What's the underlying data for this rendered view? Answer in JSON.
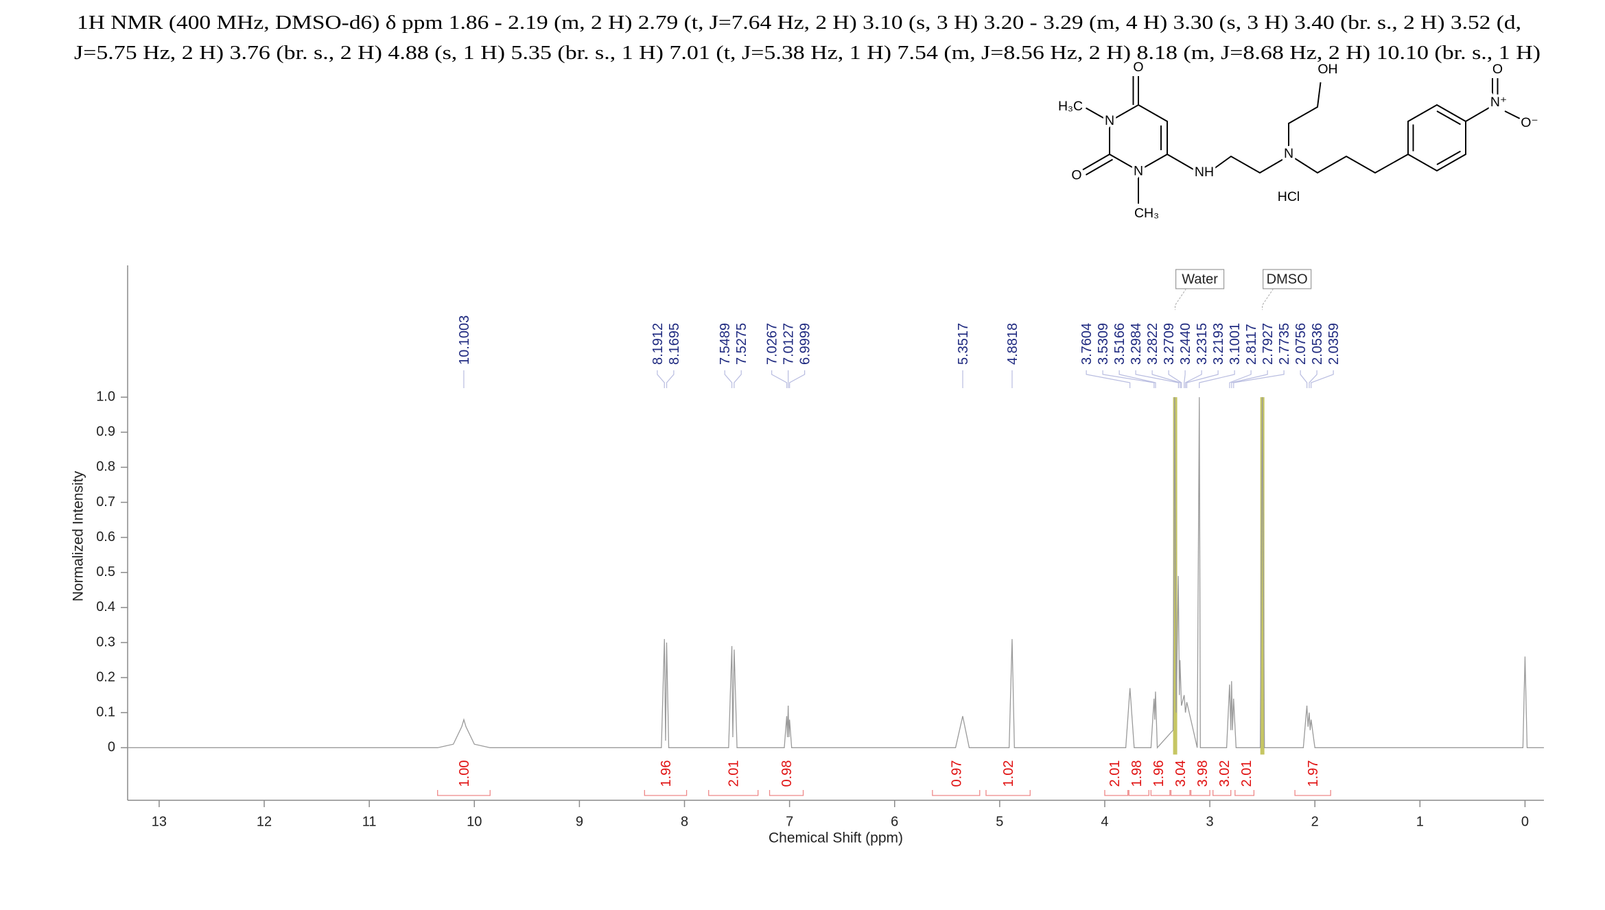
{
  "chart_data": {
    "type": "line",
    "title": [
      "1H NMR (400 MHz, DMSO-d6) δ ppm 1.86 - 2.19 (m, 2 H) 2.79 (t, J=7.64 Hz, 2 H) 3.10 (s, 3 H) 3.20 - 3.29 (m, 4 H) 3.30 (s, 3 H) 3.40 (br. s., 2 H) 3.52 (d,",
      "J=5.75 Hz, 2 H) 3.76 (br. s., 2 H) 4.88 (s, 1 H) 5.35 (br. s., 1 H) 7.01 (t,  J=5.38 Hz, 1 H) 7.54 (m, J=8.56 Hz, 2 H) 8.18 (m, J=8.68 Hz, 2 H) 10.10 (br. s., 1 H)"
    ],
    "x_label": "Chemical Shift (ppm)",
    "y_label": "Normalized Intensity",
    "xlim": [
      13.3,
      -0.18
    ],
    "ylim": [
      -0.15,
      1.376
    ],
    "xticks": [
      13,
      12,
      11,
      10,
      9,
      8,
      7,
      6,
      5,
      4,
      3,
      2,
      1,
      0
    ],
    "yticks": [
      0,
      0.1,
      0.2,
      0.3,
      0.4,
      0.5,
      0.6,
      0.7,
      0.8,
      0.9,
      {
        "value": 1,
        "label": "1.0"
      }
    ],
    "series": [
      {
        "color": "#9a9a9a",
        "x": [
          13.3,
          10.35,
          10.2,
          10.12,
          10.1,
          10.08,
          10.0,
          9.85,
          8.22,
          8.191,
          8.18,
          8.17,
          8.15,
          7.58,
          7.549,
          7.54,
          7.527,
          7.5,
          7.05,
          7.027,
          7.02,
          7.013,
          7.006,
          7.0,
          6.98,
          5.42,
          5.352,
          5.29,
          4.91,
          4.882,
          4.86,
          3.8,
          3.76,
          3.72,
          3.56,
          3.531,
          3.524,
          3.517,
          3.5,
          3.35,
          3.335,
          3.32,
          3.3,
          3.29,
          3.284,
          3.27,
          3.244,
          3.232,
          3.219,
          3.15,
          3.12,
          3.1,
          3.09,
          2.84,
          2.812,
          2.8,
          2.793,
          2.784,
          2.774,
          2.75,
          2.52,
          2.5,
          2.48,
          2.11,
          2.076,
          2.065,
          2.054,
          2.045,
          2.036,
          2.0,
          0.02,
          0.0,
          -0.02,
          -0.18
        ],
        "values": [
          0,
          0,
          0.01,
          0.06,
          0.08,
          0.06,
          0.01,
          0,
          0,
          0.31,
          0.02,
          0.3,
          0,
          0,
          0.29,
          0.03,
          0.28,
          0,
          0,
          0.09,
          0.03,
          0.12,
          0.03,
          0.08,
          0,
          0,
          0.09,
          0,
          0,
          0.31,
          0,
          0,
          0.17,
          0,
          0,
          0.14,
          0.08,
          0.16,
          0,
          0.05,
          1.0,
          0.1,
          0.49,
          0.15,
          0.25,
          0.12,
          0.15,
          0.1,
          0.13,
          0.04,
          0,
          1.0,
          0,
          0,
          0.18,
          0.05,
          0.19,
          0.05,
          0.14,
          0,
          0,
          1.0,
          0,
          0,
          0.12,
          0.06,
          0.1,
          0.05,
          0.08,
          0,
          0,
          0.26,
          0,
          0
        ]
      }
    ],
    "peak_labels": [
      10.1003,
      8.1912,
      8.1695,
      7.5489,
      7.5275,
      7.0267,
      7.0127,
      6.9999,
      5.3517,
      4.8818,
      3.7604,
      3.5309,
      3.5166,
      3.2984,
      3.2822,
      3.2709,
      {
        "value": 3.244,
        "label": "3.2440"
      },
      3.2315,
      3.2193,
      3.1001,
      2.8117,
      2.7927,
      2.7735,
      2.0756,
      2.0536,
      2.0359
    ],
    "peak_label_color": "#1f2a80",
    "integrals": {
      "color": "#e01010",
      "values": [
        1,
        1.96,
        2.01,
        0.98,
        0.97,
        1.02,
        2.01,
        1.98,
        1.96,
        3.04,
        3.98,
        3.02,
        2.01,
        1.97
      ],
      "value_labels": [
        "1.00",
        "1.96",
        "2.01",
        "0.98",
        "0.97",
        "1.02",
        "2.01",
        "1.98",
        "1.96",
        "3.04",
        "3.98",
        "3.02",
        "2.01",
        "1.97"
      ],
      "from": [
        10.35,
        8.38,
        7.77,
        7.19,
        5.64,
        5.13,
        4.0,
        3.77,
        3.56,
        3.37,
        3.18,
        2.97,
        2.76,
        2.19
      ],
      "to": [
        9.85,
        7.98,
        7.3,
        6.87,
        5.19,
        4.71,
        3.78,
        3.58,
        3.38,
        3.19,
        3.0,
        2.8,
        2.58,
        1.85
      ]
    },
    "annotations": [
      {
        "text": "Water",
        "x": 3.33
      },
      {
        "text": "DMSO",
        "x": 2.5
      }
    ],
    "solvent_color": "#b8b83c"
  },
  "structure": {
    "labels": [
      "O",
      "H₃C",
      "N",
      "O",
      "N",
      "CH₃",
      "NH",
      "OH",
      "N",
      "HCl",
      "O",
      "N⁺",
      "O⁻"
    ]
  }
}
